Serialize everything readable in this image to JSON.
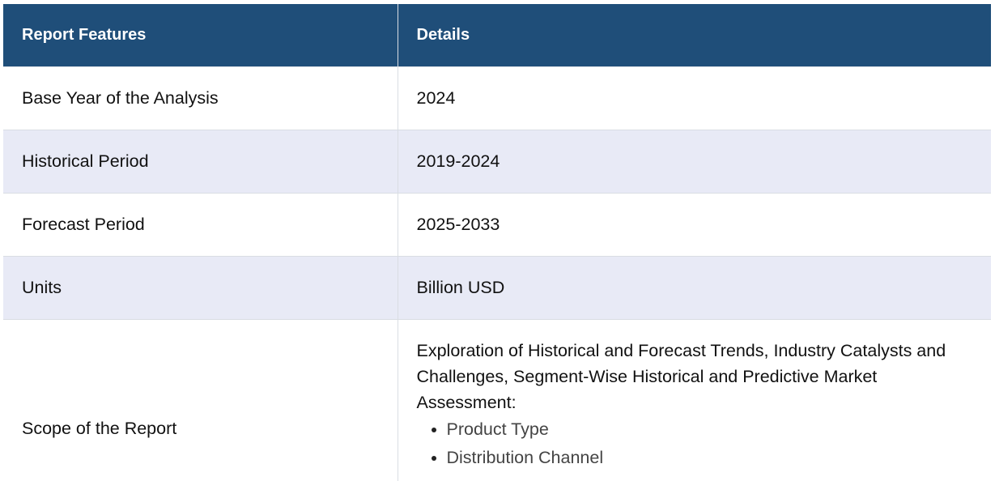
{
  "table": {
    "header": {
      "col1": "Report Features",
      "col2": "Details"
    },
    "rows": [
      {
        "feature": "Base Year of the Analysis",
        "detail": "2024"
      },
      {
        "feature": "Historical Period",
        "detail": "2019-2024"
      },
      {
        "feature": "Forecast Period",
        "detail": "2025-2033"
      },
      {
        "feature": "Units",
        "detail": "Billion USD"
      }
    ],
    "scope": {
      "feature": "Scope of the Report",
      "description": "Exploration of Historical and Forecast Trends, Industry Catalysts and Challenges, Segment-Wise Historical and Predictive Market Assessment:",
      "items": [
        "Product Type",
        "Distribution Channel"
      ]
    }
  },
  "colors": {
    "header_bg": "#1f4e79",
    "header_text": "#ffffff",
    "alt_row_bg": "#e8eaf6",
    "border": "#d9dde3"
  }
}
